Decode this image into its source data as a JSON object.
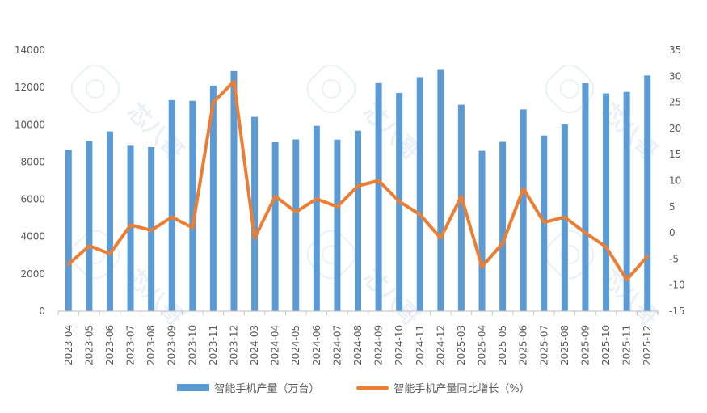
{
  "chart_data": {
    "type": "bar+line",
    "categories": [
      "2023-04",
      "2023-05",
      "2023-06",
      "2023-07",
      "2023-08",
      "2023-09",
      "2023-10",
      "2023-11",
      "2023-12",
      "2024-03",
      "2024-04",
      "2024-05",
      "2024-06",
      "2024-07",
      "2024-08",
      "2024-09",
      "2024-10",
      "2024-11",
      "2024-12",
      "2025-03",
      "2025-04",
      "2025-05",
      "2025-06",
      "2025-07",
      "2025-08",
      "2025-09",
      "2025-10",
      "2025-11",
      "2025-12"
    ],
    "series": [
      {
        "name": "智能手机产量（万台）",
        "type": "bar",
        "axis": "left",
        "color": "#5b9bd5",
        "values": [
          8650,
          9120,
          9640,
          8870,
          8800,
          11320,
          11280,
          12100,
          12880,
          10420,
          9060,
          9210,
          9940,
          9200,
          9680,
          12230,
          11700,
          12550,
          12980,
          11070,
          8600,
          9080,
          10820,
          9420,
          10010,
          12220,
          11680,
          11760,
          12640
        ]
      },
      {
        "name": "智能手机产量同比增长（%）",
        "type": "line",
        "axis": "right",
        "color": "#ed7d31",
        "values": [
          -6,
          -2.5,
          -4,
          1.5,
          0.5,
          3,
          1,
          25,
          29,
          -1,
          7,
          4,
          6.5,
          5,
          9,
          10,
          6,
          3.5,
          -1,
          7,
          -6.5,
          -2,
          8.5,
          2,
          3,
          0,
          -2.7,
          -9,
          -4.5
        ]
      }
    ],
    "y_left": {
      "min": 0,
      "max": 14000,
      "ticks": [
        "0",
        "2000",
        "4000",
        "6000",
        "8000",
        "10000",
        "12000",
        "14000"
      ]
    },
    "y_right": {
      "min": -15,
      "max": 35,
      "ticks": [
        "-15",
        "-10",
        "-5",
        "0",
        "5",
        "10",
        "15",
        "20",
        "25",
        "30",
        "35"
      ]
    },
    "grid": false,
    "legend_position": "bottom"
  },
  "legend": {
    "bar_label": "智能手机产量（万台）",
    "line_label": "智能手机产量同比增长（%）",
    "bar_color": "#5b9bd5",
    "line_color": "#ed7d31"
  },
  "watermark": {
    "text": "芯八哥"
  }
}
